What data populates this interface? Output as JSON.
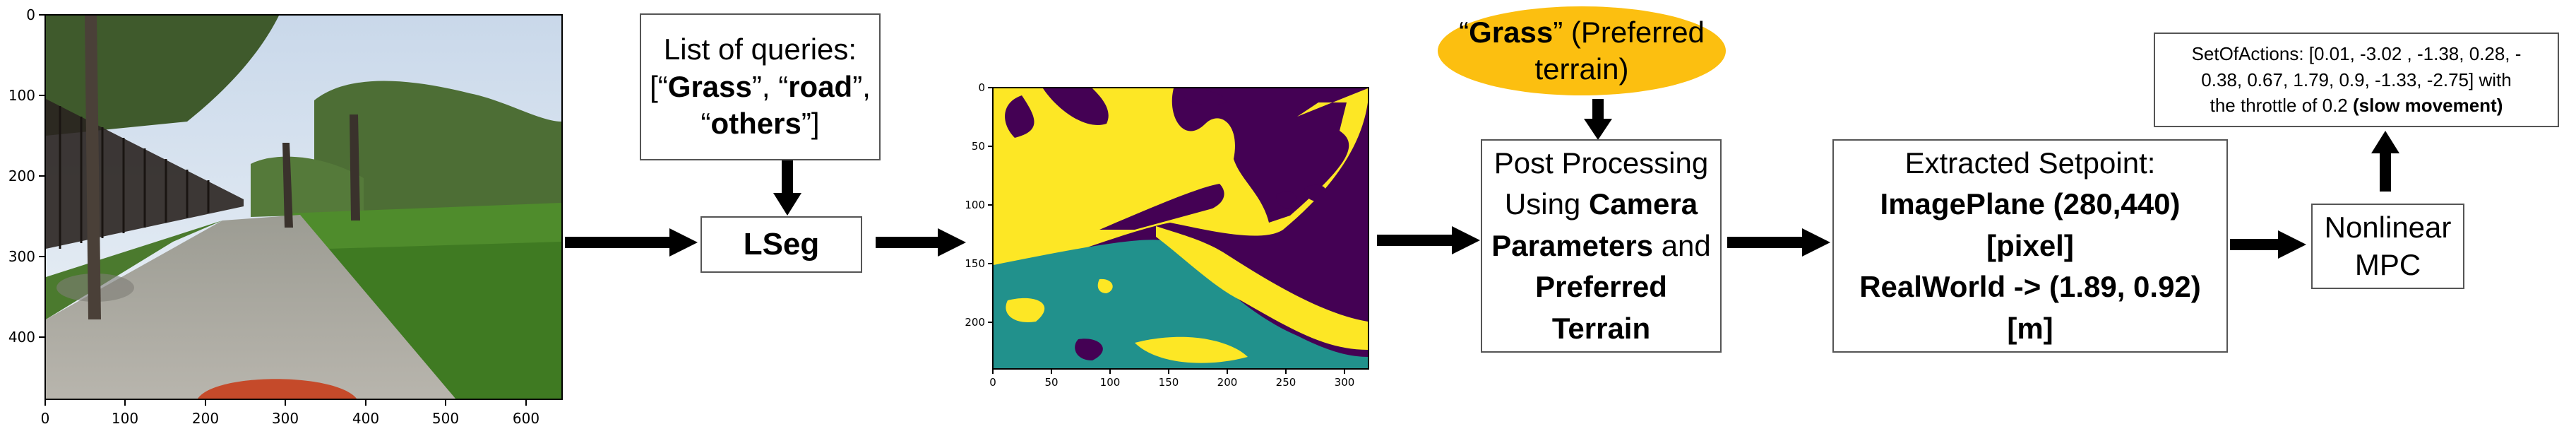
{
  "image_plot": {
    "x_ticks": [
      "0",
      "100",
      "200",
      "300",
      "400",
      "500",
      "600"
    ],
    "y_ticks": [
      "0",
      "100",
      "200",
      "300",
      "400"
    ]
  },
  "queries_box": {
    "line1": "List of queries:",
    "line2_a": "[“",
    "line2_b": "Grass",
    "line2_c": "”, “",
    "line2_d": "road",
    "line2_e": "”,",
    "line3_a": "“",
    "line3_b": "others",
    "line3_c": "”]"
  },
  "lseg_box": {
    "label": "LSeg"
  },
  "segmentation_plot": {
    "x_ticks": [
      "0",
      "50",
      "100",
      "150",
      "200",
      "250",
      "300"
    ],
    "y_ticks": [
      "0",
      "50",
      "100",
      "150",
      "200"
    ],
    "colors": {
      "purple": "#440154",
      "yellow": "#fde725",
      "teal": "#21918c"
    }
  },
  "preferred_terrain": {
    "a": "“",
    "b": "Grass",
    "c": "” (Preferred",
    "line2": "terrain)",
    "color": "#fcbf10"
  },
  "post_processing_box": {
    "line1": "Post Processing",
    "line2_a": "Using ",
    "line2_b": "Camera",
    "line3_a": "Parameters",
    "line3_b": " and",
    "line4": "Preferred",
    "line5": "Terrain"
  },
  "setpoint_box": {
    "line1": "Extracted Setpoint:",
    "line2": "ImagePlane (280,440)",
    "line3": "[pixel]",
    "line4": "RealWorld -> (1.89, 0.92)",
    "line5": "[m]"
  },
  "mpc_box": {
    "line1": "Nonlinear",
    "line2": "MPC"
  },
  "actions_box": {
    "line1": "SetOfActions: [0.01, -3.02 , -1.38, 0.28, -",
    "line2": "0.38, 0.67, 1.79, 0.9, -1.33, -2.75] with",
    "line3_a": "the throttle of 0.2 ",
    "line3_b": "(slow movement)"
  }
}
